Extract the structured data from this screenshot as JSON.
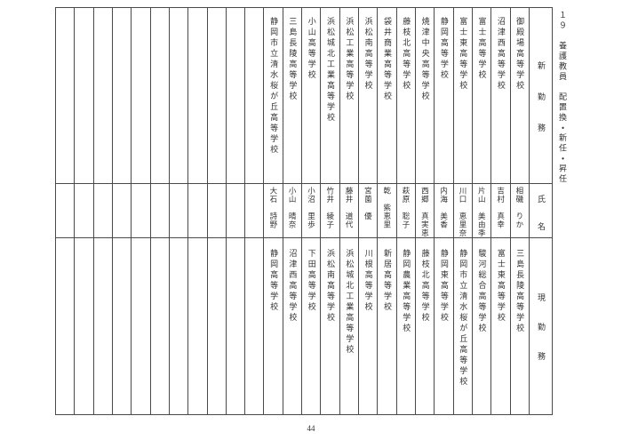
{
  "page": {
    "title": "１９　養護教員　配置換・新任・昇任",
    "page_number": "44"
  },
  "table": {
    "headers": {
      "new_post": "新勤務",
      "name": "氏名",
      "current_post": "現勤務"
    },
    "empty_columns": 11,
    "rows": [
      {
        "new_post": "御殿場高等学校",
        "name": "相磯　りか",
        "current_post": "三島長陵高等学校"
      },
      {
        "new_post": "沼津西高等学校",
        "name": "吉村　真幸",
        "current_post": "富士東高等学校"
      },
      {
        "new_post": "富士高等学校",
        "name": "片山　美由季",
        "current_post": "駿河総合高等学校"
      },
      {
        "new_post": "富士東高等学校",
        "name": "川口　恵里奈",
        "current_post": "静岡市立清水桜が丘高等学校"
      },
      {
        "new_post": "静岡高等学校",
        "name": "内海　美香",
        "current_post": "静岡東高等学校"
      },
      {
        "new_post": "焼津中央高等学校",
        "name": "西郷　真実恵",
        "current_post": "藤枝北高等学校"
      },
      {
        "new_post": "藤枝北高等学校",
        "name": "萩原　聡子",
        "current_post": "静岡農業高等学校"
      },
      {
        "new_post": "袋井商業高等学校",
        "name": "乾　紫恵里",
        "current_post": "新居高等学校"
      },
      {
        "new_post": "浜松南高等学校",
        "name": "宮薗　優",
        "current_post": "川根高等学校"
      },
      {
        "new_post": "浜松工業高等学校",
        "name": "藤井　道代",
        "current_post": "浜松城北工業高等学校"
      },
      {
        "new_post": "浜松城北工業高等学校",
        "name": "竹井　綾子",
        "current_post": "浜松南高等学校"
      },
      {
        "new_post": "小山高等学校",
        "name": "小沼　里歩",
        "current_post": "下田高等学校"
      },
      {
        "new_post": "三島長陵高等学校",
        "name": "小山　晴奈",
        "current_post": "沼津西高等学校"
      },
      {
        "new_post": "静岡市立清水桜が丘高等学校",
        "name": "大石　詩野",
        "current_post": "静岡高等学校"
      }
    ]
  }
}
